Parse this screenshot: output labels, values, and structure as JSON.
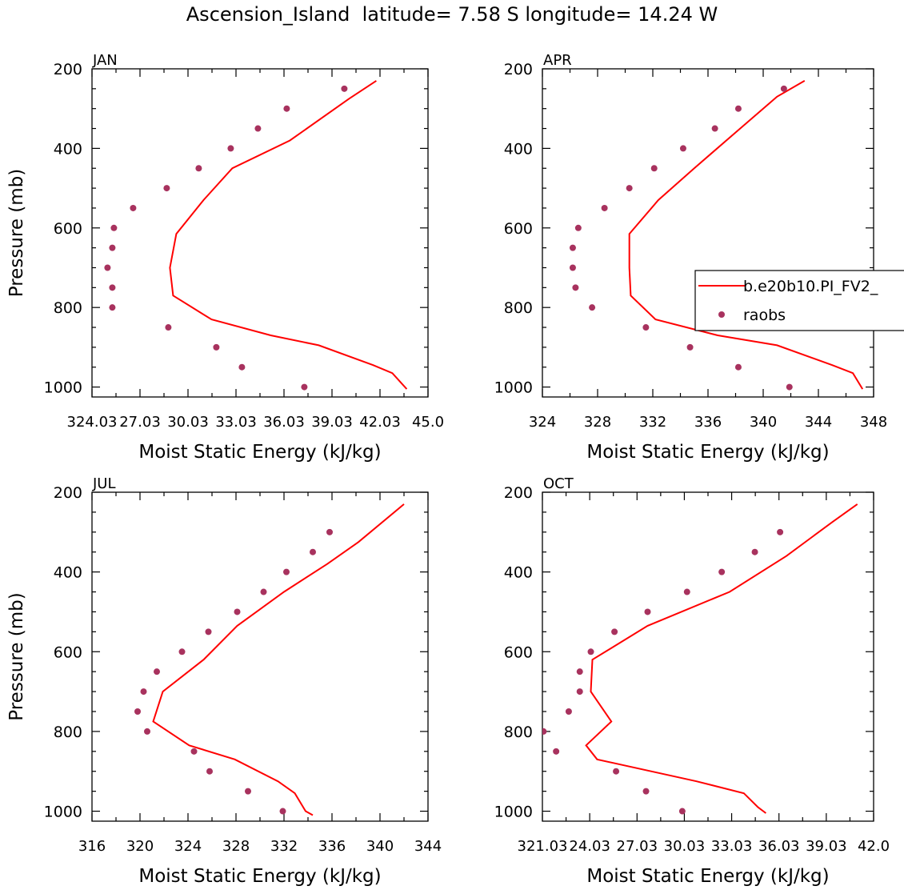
{
  "figure_title": "Ascension_Island  latitude= 7.58 S longitude= 14.24 W",
  "colors": {
    "model": "#ff0000",
    "obs": "#a8325e",
    "axis": "#000000"
  },
  "legend": {
    "model": "b.e20b10.PI_FV2_",
    "obs": "raobs"
  },
  "chart_data": [
    {
      "type": "line",
      "panel": "JAN",
      "xlabel": "Moist Static Energy (kJ/kg)",
      "ylabel": "Pressure (mb)",
      "xlim": [
        324.03,
        345.03
      ],
      "ylim": [
        200,
        1025
      ],
      "y_inverted": true,
      "xticks": [
        324.03,
        327.03,
        330.03,
        333.03,
        336.03,
        339.03,
        342.03,
        345.03
      ],
      "xtick_labels": [
        "324.03",
        "27.03",
        "30.03",
        "33.03",
        "36.03",
        "39.03",
        "42.03",
        "45.0"
      ],
      "yticks": [
        200,
        400,
        600,
        800,
        1000
      ],
      "ytick_labels": [
        "200",
        "400",
        "600",
        "800",
        "1000"
      ],
      "series": [
        {
          "name": "b.e20b10.PI_FV2_",
          "style": "line",
          "x": [
            341.8,
            340.1,
            336.4,
            332.8,
            331.0,
            329.3,
            328.9,
            329.1,
            331.5,
            335.2,
            338.2,
            341.6,
            342.8,
            343.7
          ],
          "y": [
            230,
            275,
            380,
            450,
            530,
            615,
            700,
            770,
            830,
            870,
            895,
            945,
            965,
            1005
          ]
        },
        {
          "name": "raobs",
          "style": "markers",
          "x": [
            339.8,
            336.2,
            334.4,
            332.7,
            330.7,
            328.7,
            326.6,
            325.4,
            325.3,
            325.0,
            325.3,
            325.3,
            328.8,
            331.8,
            333.4,
            337.3
          ],
          "y": [
            250,
            300,
            350,
            400,
            450,
            500,
            550,
            600,
            650,
            700,
            750,
            800,
            850,
            900,
            950,
            1000
          ]
        }
      ]
    },
    {
      "type": "line",
      "panel": "APR",
      "xlabel": "Moist Static Energy (kJ/kg)",
      "ylabel": "",
      "xlim": [
        324,
        348
      ],
      "ylim": [
        200,
        1025
      ],
      "y_inverted": true,
      "xticks": [
        324,
        328,
        332,
        336,
        340,
        344,
        348
      ],
      "xtick_labels": [
        "324",
        "328",
        "332",
        "336",
        "340",
        "344",
        "348"
      ],
      "yticks": [
        200,
        400,
        600,
        800,
        1000
      ],
      "ytick_labels": [
        "200",
        "400",
        "600",
        "800",
        "1000"
      ],
      "legend_placement": "right",
      "series": [
        {
          "name": "b.e20b10.PI_FV2_",
          "style": "line",
          "x": [
            343.0,
            341.0,
            338.0,
            335.0,
            332.4,
            330.3,
            330.3,
            330.4,
            332.2,
            336.7,
            341.0,
            345.0,
            346.5,
            347.2
          ],
          "y": [
            230,
            270,
            360,
            450,
            530,
            615,
            700,
            770,
            830,
            870,
            895,
            945,
            965,
            1005
          ]
        },
        {
          "name": "raobs",
          "style": "markers",
          "x": [
            341.5,
            338.2,
            336.5,
            334.2,
            332.1,
            330.3,
            328.5,
            326.6,
            326.2,
            326.2,
            326.4,
            327.6,
            331.5,
            334.7,
            338.2,
            341.9
          ],
          "y": [
            250,
            300,
            350,
            400,
            450,
            500,
            550,
            600,
            650,
            700,
            750,
            800,
            850,
            900,
            950,
            1000
          ]
        }
      ]
    },
    {
      "type": "line",
      "panel": "JUL",
      "xlabel": "Moist Static Energy (kJ/kg)",
      "ylabel": "Pressure (mb)",
      "xlim": [
        316,
        344
      ],
      "ylim": [
        200,
        1025
      ],
      "y_inverted": true,
      "xticks": [
        316,
        320,
        324,
        328,
        332,
        336,
        340,
        344
      ],
      "xtick_labels": [
        "316",
        "320",
        "324",
        "328",
        "332",
        "336",
        "340",
        "344"
      ],
      "yticks": [
        200,
        400,
        600,
        800,
        1000
      ],
      "ytick_labels": [
        "200",
        "400",
        "600",
        "800",
        "1000"
      ],
      "series": [
        {
          "name": "b.e20b10.PI_FV2_",
          "style": "line",
          "x": [
            342.0,
            338.2,
            335.6,
            332.0,
            328.1,
            325.3,
            321.9,
            321.1,
            324.1,
            327.9,
            331.5,
            332.9,
            333.8,
            334.4
          ],
          "y": [
            230,
            325,
            380,
            450,
            535,
            620,
            700,
            775,
            835,
            870,
            925,
            955,
            1000,
            1010
          ]
        },
        {
          "name": "raobs",
          "style": "markers",
          "x": [
            335.8,
            334.4,
            332.2,
            330.3,
            328.1,
            325.7,
            323.5,
            321.4,
            320.3,
            319.8,
            320.6,
            324.5,
            325.8,
            329.0,
            331.9
          ],
          "y": [
            300,
            350,
            400,
            450,
            500,
            550,
            600,
            650,
            700,
            750,
            800,
            850,
            900,
            950,
            1000
          ]
        }
      ]
    },
    {
      "type": "line",
      "panel": "OCT",
      "xlabel": "Moist Static Energy (kJ/kg)",
      "ylabel": "",
      "xlim": [
        321.03,
        342.03
      ],
      "ylim": [
        200,
        1025
      ],
      "y_inverted": true,
      "xticks": [
        321.03,
        324.03,
        327.03,
        330.03,
        333.03,
        336.03,
        339.03,
        342.03
      ],
      "xtick_labels": [
        "321.03",
        "24.03",
        "27.03",
        "30.03",
        "33.03",
        "36.03",
        "39.03",
        "42.0"
      ],
      "yticks": [
        200,
        400,
        600,
        800,
        1000
      ],
      "ytick_labels": [
        "200",
        "400",
        "600",
        "800",
        "1000"
      ],
      "series": [
        {
          "name": "b.e20b10.PI_FV2_",
          "style": "line",
          "x": [
            341.0,
            339.4,
            336.5,
            332.9,
            327.7,
            324.2,
            324.1,
            325.4,
            323.8,
            324.5,
            330.8,
            333.8,
            334.7,
            335.2
          ],
          "y": [
            230,
            275,
            360,
            450,
            535,
            620,
            700,
            775,
            835,
            870,
            925,
            955,
            990,
            1005
          ]
        },
        {
          "name": "raobs",
          "style": "markers",
          "x": [
            336.1,
            334.5,
            332.4,
            330.2,
            327.7,
            325.6,
            324.1,
            323.4,
            323.4,
            322.7,
            321.1,
            321.9,
            325.7,
            327.6,
            329.9
          ],
          "y": [
            300,
            350,
            400,
            450,
            500,
            550,
            600,
            650,
            700,
            750,
            800,
            850,
            900,
            950,
            1000
          ]
        }
      ]
    }
  ]
}
